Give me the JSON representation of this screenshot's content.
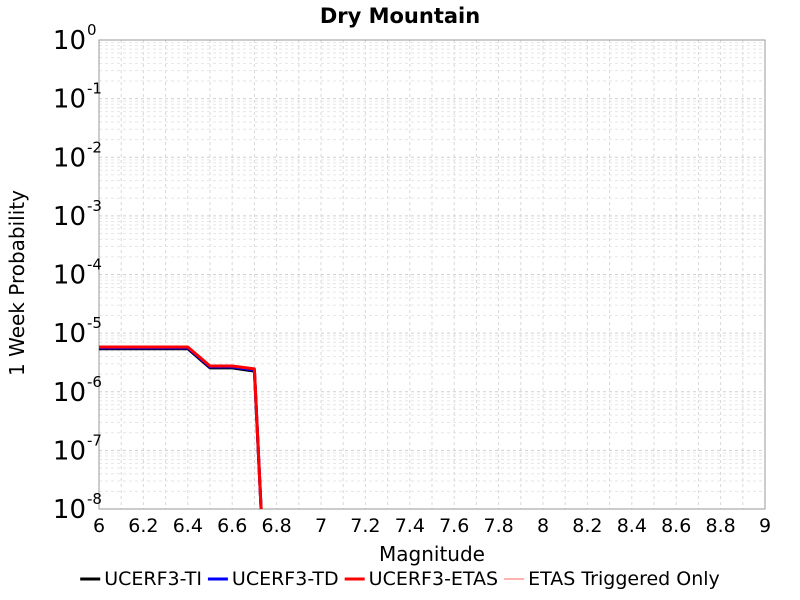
{
  "chart_data": {
    "type": "line",
    "title": "Dry Mountain",
    "xlabel": "Magnitude",
    "ylabel": "1 Week Probability",
    "xlim": [
      6,
      9
    ],
    "ylim": [
      1e-08,
      1
    ],
    "y_scale": "log",
    "grid": true,
    "legend_placement": "bottom",
    "x_ticks": [
      "6",
      "6.2",
      "6.4",
      "6.6",
      "6.8",
      "7",
      "7.2",
      "7.4",
      "7.6",
      "7.8",
      "8",
      "8.2",
      "8.4",
      "8.6",
      "8.8",
      "9"
    ],
    "y_ticks": [
      {
        "base": "10",
        "exp": "0"
      },
      {
        "base": "10",
        "exp": "-1"
      },
      {
        "base": "10",
        "exp": "-2"
      },
      {
        "base": "10",
        "exp": "-3"
      },
      {
        "base": "10",
        "exp": "-4"
      },
      {
        "base": "10",
        "exp": "-5"
      },
      {
        "base": "10",
        "exp": "-6"
      },
      {
        "base": "10",
        "exp": "-7"
      },
      {
        "base": "10",
        "exp": "-8"
      }
    ],
    "series": [
      {
        "name": "UCERF3-TI",
        "color": "#000000",
        "width": 3,
        "x": [
          6.0,
          6.1,
          6.2,
          6.3,
          6.4,
          6.5,
          6.6,
          6.7,
          6.73
        ],
        "y": [
          5.4e-06,
          5.4e-06,
          5.4e-06,
          5.4e-06,
          5.4e-06,
          2.55e-06,
          2.55e-06,
          2.25e-06,
          1e-08
        ]
      },
      {
        "name": "UCERF3-TD",
        "color": "#0000ff",
        "width": 3,
        "x": [
          6.0,
          6.1,
          6.2,
          6.3,
          6.4,
          6.5,
          6.6,
          6.7,
          6.73
        ],
        "y": [
          5.6e-06,
          5.6e-06,
          5.6e-06,
          5.6e-06,
          5.6e-06,
          2.65e-06,
          2.65e-06,
          2.35e-06,
          1e-08
        ]
      },
      {
        "name": "UCERF3-ETAS",
        "color": "#ff0000",
        "width": 3,
        "x": [
          6.0,
          6.1,
          6.2,
          6.3,
          6.4,
          6.5,
          6.6,
          6.7,
          6.73
        ],
        "y": [
          5.8e-06,
          5.8e-06,
          5.8e-06,
          5.8e-06,
          5.8e-06,
          2.75e-06,
          2.75e-06,
          2.45e-06,
          1e-08
        ]
      },
      {
        "name": "ETAS Triggered Only",
        "color": "#ff6666",
        "width": 1,
        "x": [],
        "y": []
      }
    ]
  }
}
